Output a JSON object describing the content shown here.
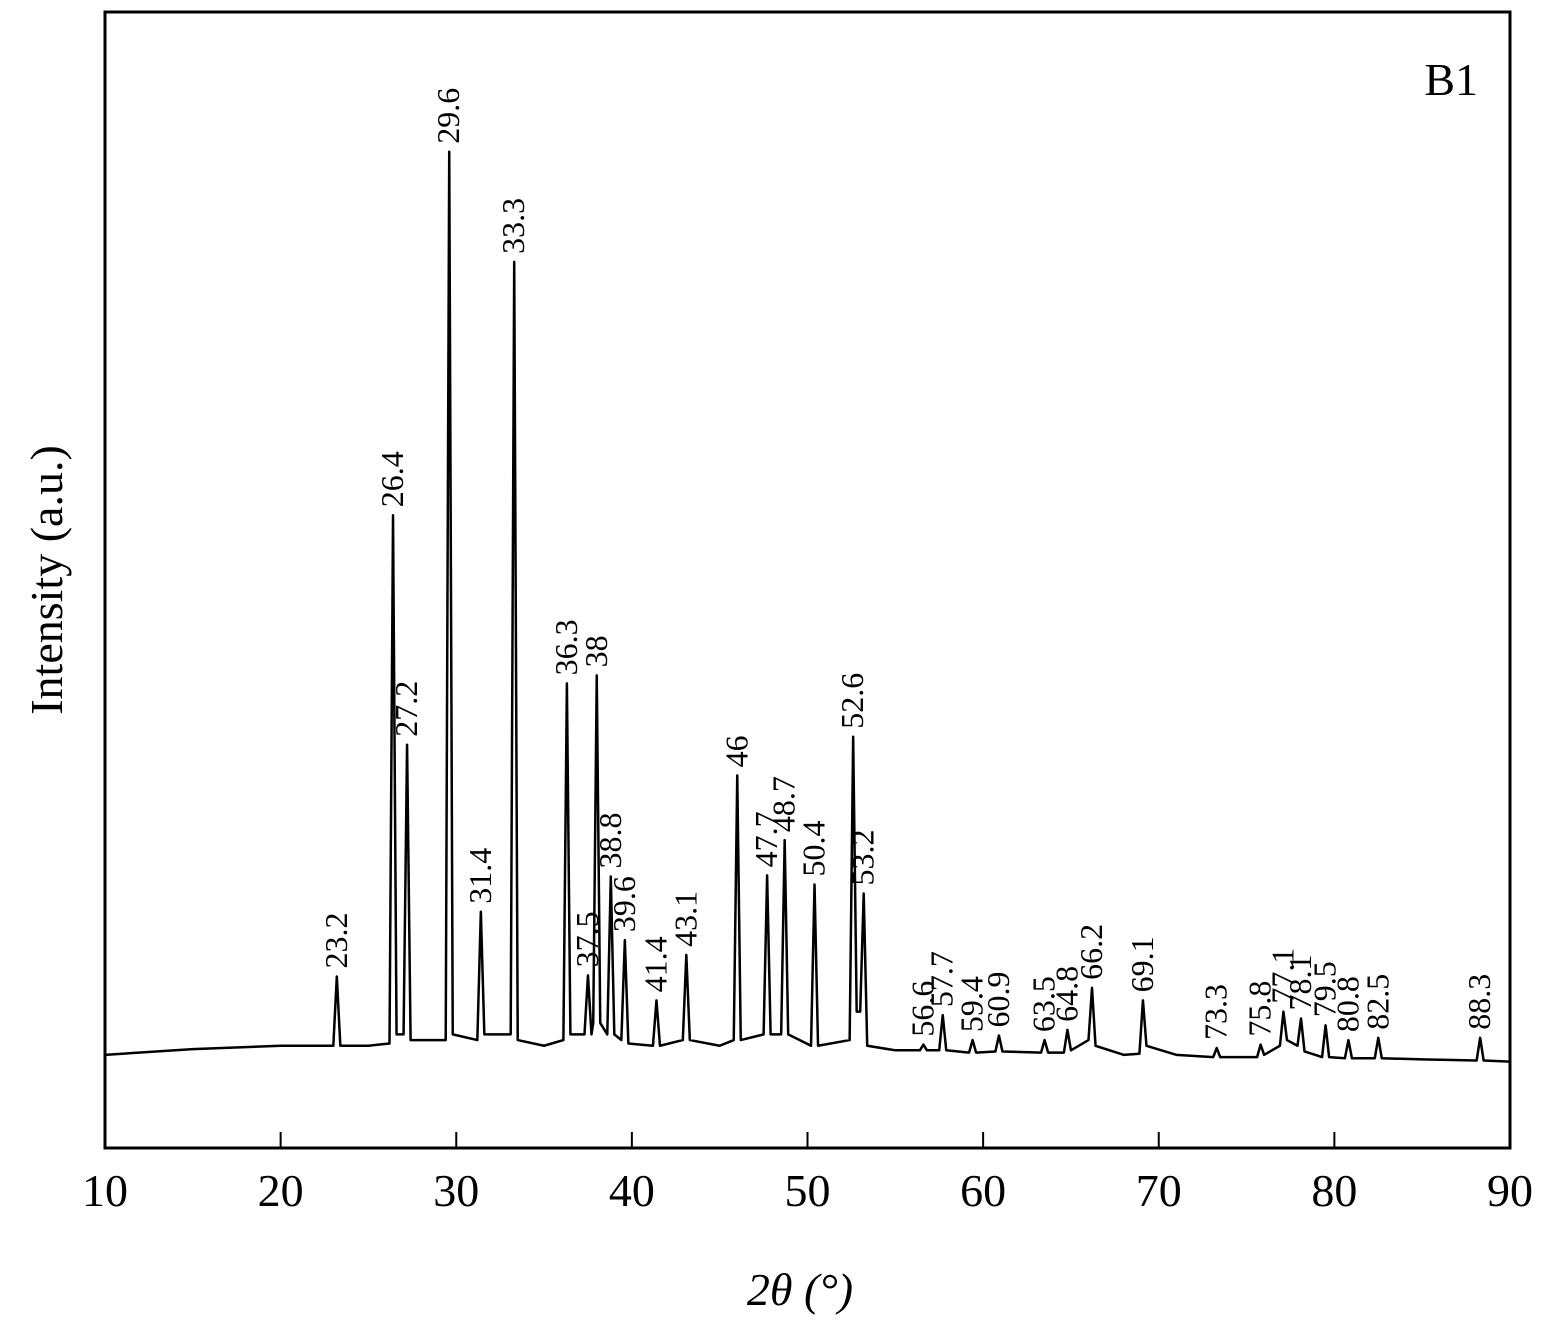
{
  "chart_data": {
    "type": "line",
    "annotation": "B1",
    "x_label": "2θ (°)",
    "y_label": "Intensity (a.u.)",
    "xlim": [
      10,
      90
    ],
    "xticks": [
      10,
      20,
      30,
      40,
      50,
      60,
      70,
      80,
      90
    ],
    "ylim": [
      0,
      100
    ],
    "x": [
      10,
      15,
      20,
      23.0,
      23.2,
      23.4,
      25,
      26.2,
      26.4,
      26.6,
      27.0,
      27.2,
      27.4,
      29.4,
      29.6,
      29.8,
      31.2,
      31.4,
      31.6,
      33.1,
      33.3,
      33.5,
      35,
      36.1,
      36.3,
      36.5,
      37.3,
      37.5,
      37.7,
      37.8,
      38.0,
      38.2,
      38.6,
      38.8,
      39.0,
      39.4,
      39.6,
      39.8,
      41.2,
      41.4,
      41.6,
      42.9,
      43.1,
      43.3,
      45,
      45.8,
      46.0,
      46.2,
      47.5,
      47.7,
      47.9,
      48.5,
      48.7,
      48.9,
      50.2,
      50.4,
      50.6,
      52.4,
      52.6,
      52.8,
      53.0,
      53.2,
      53.4,
      55,
      56.4,
      56.6,
      56.8,
      57.5,
      57.7,
      57.9,
      59.2,
      59.4,
      59.6,
      60.7,
      60.9,
      61.1,
      63.3,
      63.5,
      63.7,
      64.6,
      64.8,
      65.0,
      66.0,
      66.2,
      66.4,
      68,
      68.9,
      69.1,
      69.3,
      71,
      73.1,
      73.3,
      73.5,
      75.6,
      75.8,
      76.0,
      76.9,
      77.1,
      77.3,
      77.9,
      78.1,
      78.3,
      79.3,
      79.5,
      79.7,
      80.6,
      80.8,
      81.0,
      82.3,
      82.5,
      82.7,
      85,
      88.1,
      88.3,
      88.5,
      90
    ],
    "series": [
      {
        "color": "#000000",
        "values": [
          8.2,
          8.7,
          9.0,
          9.0,
          15.1,
          9.0,
          9.0,
          9.2,
          55.7,
          10,
          10,
          35.5,
          9.5,
          9.5,
          87.7,
          10,
          9.5,
          20.8,
          10,
          10,
          78.0,
          9.5,
          9.0,
          9.5,
          40.9,
          10,
          10,
          15.2,
          10,
          11,
          41.6,
          11,
          10,
          23.9,
          10,
          9.5,
          18.3,
          9.2,
          9.0,
          13.0,
          9.0,
          9.5,
          17.0,
          9.5,
          9.0,
          9.5,
          32.8,
          9.5,
          10,
          24.0,
          10,
          10,
          27.1,
          10,
          9.0,
          23.2,
          9.0,
          9.5,
          36.2,
          12,
          12,
          22.4,
          9.0,
          8.6,
          8.6,
          9.1,
          8.6,
          8.6,
          11.7,
          8.6,
          8.4,
          9.5,
          8.4,
          8.5,
          9.9,
          8.5,
          8.4,
          9.5,
          8.4,
          8.4,
          10.4,
          8.6,
          9.5,
          14.1,
          9.0,
          8.2,
          8.3,
          13.0,
          9.0,
          8.2,
          8.0,
          8.8,
          8.0,
          8.0,
          9.1,
          8.2,
          9.0,
          12.0,
          9.5,
          9.0,
          11.4,
          8.5,
          8.0,
          10.8,
          8.0,
          7.9,
          9.5,
          7.9,
          7.9,
          9.7,
          7.9,
          7.8,
          7.7,
          9.7,
          7.7,
          7.6
        ]
      }
    ],
    "peaks": [
      23.2,
      26.4,
      27.2,
      29.6,
      31.4,
      33.3,
      36.3,
      37.5,
      38.0,
      38.8,
      39.6,
      41.4,
      43.1,
      46.0,
      47.7,
      48.7,
      50.4,
      52.6,
      53.2,
      56.6,
      57.7,
      59.4,
      60.9,
      63.5,
      64.8,
      66.2,
      69.1,
      73.3,
      75.8,
      77.1,
      78.1,
      79.5,
      80.8,
      82.5,
      88.3
    ]
  }
}
